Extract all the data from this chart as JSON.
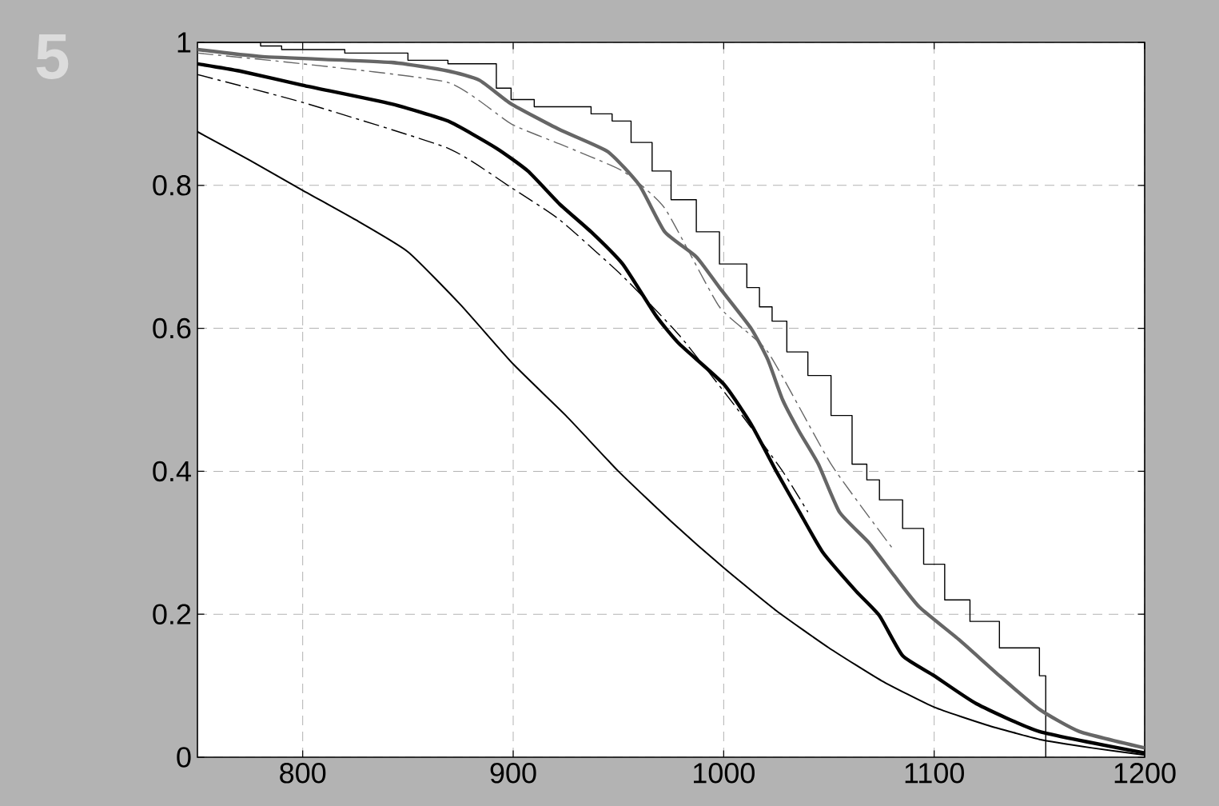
{
  "chart_data": {
    "type": "line",
    "xlim": [
      750,
      1200
    ],
    "ylim": [
      0,
      1
    ],
    "xticks": [
      800,
      900,
      1000,
      1100,
      1200
    ],
    "yticks": [
      0,
      0.2,
      0.4,
      0.6,
      0.8,
      1
    ],
    "grid": true,
    "annotations": [
      "5"
    ],
    "series": [
      {
        "color": "#000000",
        "x": [
          750,
          775,
          800,
          825,
          850,
          875,
          900,
          925,
          950,
          975,
          1000,
          1025,
          1050,
          1075,
          1100,
          1125,
          1150,
          1175,
          1200
        ],
        "values": [
          0.875,
          0.835,
          0.793,
          0.752,
          0.707,
          0.633,
          0.55,
          0.478,
          0.4,
          0.33,
          0.265,
          0.205,
          0.153,
          0.107,
          0.07,
          0.045,
          0.025,
          0.013,
          0.003
        ]
      },
      {
        "type": "step",
        "color": "#000000",
        "x": [
          750,
          780,
          790,
          820,
          850,
          869,
          892,
          899,
          910,
          926,
          937,
          947,
          956,
          966,
          975,
          987,
          998,
          1011,
          1017,
          1023,
          1030,
          1040,
          1051,
          1061,
          1068,
          1074,
          1085,
          1095,
          1105,
          1117,
          1131,
          1150,
          1153
        ],
        "values": [
          1,
          0.995,
          0.99,
          0.985,
          0.975,
          0.97,
          0.936,
          0.92,
          0.91,
          0.91,
          0.9,
          0.89,
          0.86,
          0.82,
          0.78,
          0.735,
          0.69,
          0.657,
          0.63,
          0.61,
          0.567,
          0.534,
          0.478,
          0.41,
          0.388,
          0.36,
          0.32,
          0.27,
          0.22,
          0.19,
          0.153,
          0.114,
          0
        ]
      },
      {
        "color": "#000000",
        "x": [
          750,
          770,
          800,
          842,
          869,
          892,
          907,
          922,
          937,
          952,
          968,
          979,
          1000,
          1013,
          1025,
          1036,
          1047,
          1063,
          1074,
          1085,
          1100,
          1120,
          1150,
          1200
        ],
        "values": [
          0.97,
          0.96,
          0.94,
          0.914,
          0.89,
          0.852,
          0.82,
          0.774,
          0.735,
          0.69,
          0.617,
          0.578,
          0.522,
          0.466,
          0.4,
          0.343,
          0.287,
          0.232,
          0.198,
          0.142,
          0.114,
          0.075,
          0.036,
          0.006
        ]
      },
      {
        "color": "#666666",
        "x": [
          750,
          781,
          842,
          869,
          884,
          899,
          922,
          945,
          960,
          972,
          987,
          998,
          1013,
          1021,
          1028,
          1036,
          1045,
          1055,
          1069,
          1081,
          1093,
          1112,
          1131,
          1150,
          1169,
          1200
        ],
        "values": [
          0.99,
          0.98,
          0.972,
          0.96,
          0.947,
          0.914,
          0.878,
          0.847,
          0.8,
          0.735,
          0.7,
          0.657,
          0.6,
          0.556,
          0.5,
          0.455,
          0.41,
          0.343,
          0.3,
          0.254,
          0.21,
          0.164,
          0.114,
          0.067,
          0.036,
          0.013
        ]
      },
      {
        "color": "#000000",
        "line_style": "dashed",
        "x": [
          750,
          800,
          869,
          899,
          922,
          952,
          979,
          1006,
          1028,
          1040
        ],
        "values": [
          0.955,
          0.916,
          0.852,
          0.797,
          0.752,
          0.673,
          0.59,
          0.489,
          0.4,
          0.343
        ]
      },
      {
        "color": "#666666",
        "line_style": "dashed",
        "x": [
          750,
          800,
          869,
          899,
          922,
          952,
          972,
          998,
          1021,
          1051,
          1080
        ],
        "values": [
          0.985,
          0.97,
          0.944,
          0.886,
          0.858,
          0.82,
          0.768,
          0.63,
          0.567,
          0.41,
          0.293
        ]
      }
    ]
  }
}
